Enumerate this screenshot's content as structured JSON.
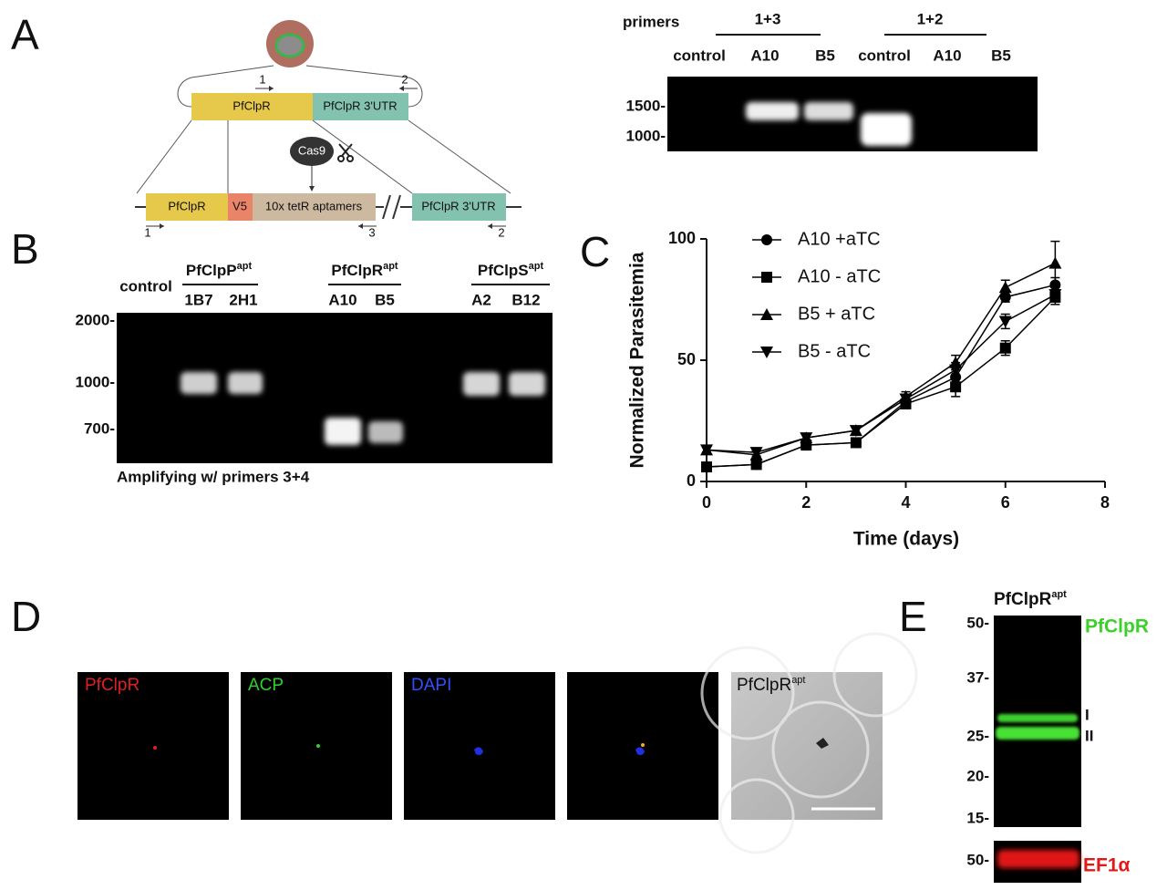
{
  "panel_labels": [
    "A",
    "B",
    "C",
    "D",
    "E"
  ],
  "panel_a": {
    "diagram": {
      "top_gene": "PfClpR",
      "top_utr": "PfClpR 3'UTR",
      "top_primers": [
        "1",
        "2"
      ],
      "enzyme": "Cas9",
      "bottom_gene": "PfClpR",
      "tag": "V5",
      "aptamers": "10x tetR aptamers",
      "bottom_utr": "PfClpR 3'UTR",
      "bottom_primers": [
        "1",
        "3",
        "2"
      ]
    },
    "gel": {
      "primers_label": "primers",
      "groups": [
        "1+3",
        "1+2"
      ],
      "lanes": [
        "control",
        "A10",
        "B5",
        "control",
        "A10",
        "B5"
      ],
      "markers": [
        "1500-",
        "1000-"
      ]
    }
  },
  "panel_b": {
    "control": "control",
    "groups": [
      {
        "base": "PfClpP",
        "sup": "apt",
        "lanes": [
          "1B7",
          "2H1"
        ]
      },
      {
        "base": "PfClpR",
        "sup": "apt",
        "lanes": [
          "A10",
          "B5"
        ]
      },
      {
        "base": "PfClpS",
        "sup": "apt",
        "lanes": [
          "A2",
          "B12"
        ]
      }
    ],
    "markers": [
      "2000-",
      "1000-",
      "700-"
    ],
    "caption": "Amplifying w/ primers 3+4"
  },
  "chart_data": {
    "type": "line",
    "x_label": "Time (days)",
    "y_label": "Normalized Parasitemia",
    "x": [
      0,
      1,
      2,
      3,
      4,
      5,
      6,
      7
    ],
    "xlim": [
      0,
      8
    ],
    "ylim": [
      0,
      100
    ],
    "xticks": [
      0,
      2,
      4,
      6,
      8
    ],
    "yticks": [
      0,
      50,
      100
    ],
    "series": [
      {
        "name": "A10 +aTC",
        "color": "#000000",
        "marker": "circle",
        "values": [
          6,
          7,
          15,
          16,
          33,
          43,
          76,
          81
        ],
        "errors": [
          1,
          1,
          1.5,
          1.5,
          2,
          3,
          2,
          3
        ]
      },
      {
        "name": "A10 - aTC",
        "color": "#000000",
        "marker": "square",
        "values": [
          6,
          7,
          15,
          16,
          32,
          39,
          55,
          76
        ],
        "errors": [
          1,
          1,
          1.5,
          1.5,
          2,
          4,
          3,
          3
        ]
      },
      {
        "name": "B5 + aTC",
        "color": "#000000",
        "marker": "triangle-up",
        "values": [
          13,
          11,
          18,
          21,
          35,
          49,
          80,
          90
        ],
        "errors": [
          1,
          1.5,
          1.5,
          1.5,
          2,
          3,
          3,
          9
        ]
      },
      {
        "name": "B5 - aTC",
        "color": "#000000",
        "marker": "triangle-down",
        "values": [
          13,
          12,
          18,
          21,
          34,
          46,
          66,
          77
        ],
        "errors": [
          1,
          1.5,
          1.5,
          1.5,
          2,
          3,
          3,
          3
        ]
      }
    ]
  },
  "panel_d": {
    "channels": [
      "PfClpR",
      "ACP",
      "DAPI"
    ],
    "brightfield": {
      "base": "PfClpR",
      "sup": "apt"
    }
  },
  "panel_e": {
    "title": {
      "base": "PfClpR",
      "sup": "apt"
    },
    "markers": [
      "50-",
      "37-",
      "25-",
      "20-",
      "15-"
    ],
    "band_label": "PfClpR",
    "band_forms": [
      "I",
      "II"
    ],
    "loading_marker": "50-",
    "loading_label": "EF1α"
  }
}
